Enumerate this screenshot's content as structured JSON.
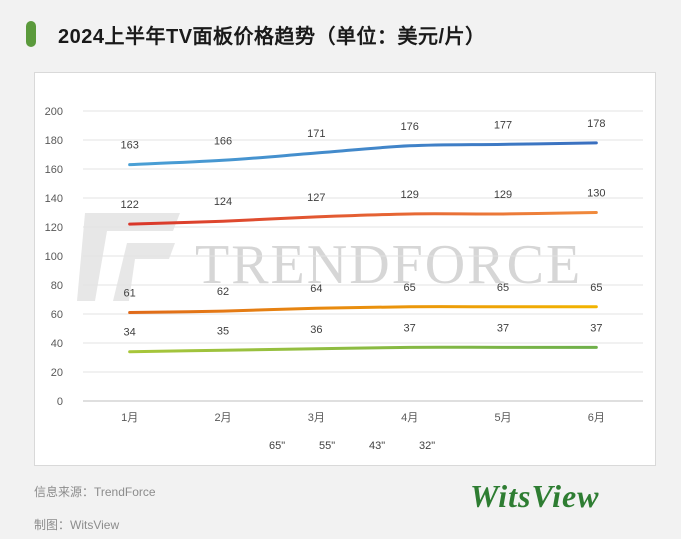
{
  "title": "2024上半年TV面板价格趋势（单位：美元/片）",
  "watermark": "TRENDFORCE",
  "footer": {
    "source": "信息来源：TrendForce",
    "made_by": "制图：WitsView"
  },
  "logo_text": "WitsView",
  "colors": {
    "accent": "#5b9a3c",
    "s65": "#4aa0d5",
    "s55": "#e8643a",
    "s43": "#f0a800",
    "s32": "#8cc63f"
  },
  "chart_data": {
    "type": "line",
    "categories": [
      "1月",
      "2月",
      "3月",
      "4月",
      "5月",
      "6月"
    ],
    "series": [
      {
        "name": "65\"",
        "values": [
          163,
          166,
          171,
          176,
          177,
          178
        ],
        "color_start": "#4aa0d5",
        "color_end": "#3a6fbf"
      },
      {
        "name": "55\"",
        "values": [
          122,
          124,
          127,
          129,
          129,
          130
        ],
        "color_start": "#d9362a",
        "color_end": "#f08a3c"
      },
      {
        "name": "43\"",
        "values": [
          61,
          62,
          64,
          65,
          65,
          65
        ],
        "color_start": "#e06a1a",
        "color_end": "#f2b400"
      },
      {
        "name": "32\"",
        "values": [
          34,
          35,
          36,
          37,
          37,
          37
        ],
        "color_start": "#a8c63a",
        "color_end": "#6fb04a"
      }
    ],
    "y_ticks": [
      0,
      20,
      40,
      60,
      80,
      100,
      120,
      140,
      160,
      180,
      200
    ],
    "ylim": [
      0,
      200
    ],
    "grid": true,
    "legend": "bottom-center",
    "title": "2024上半年TV面板价格趋势（单位：美元/片）"
  }
}
